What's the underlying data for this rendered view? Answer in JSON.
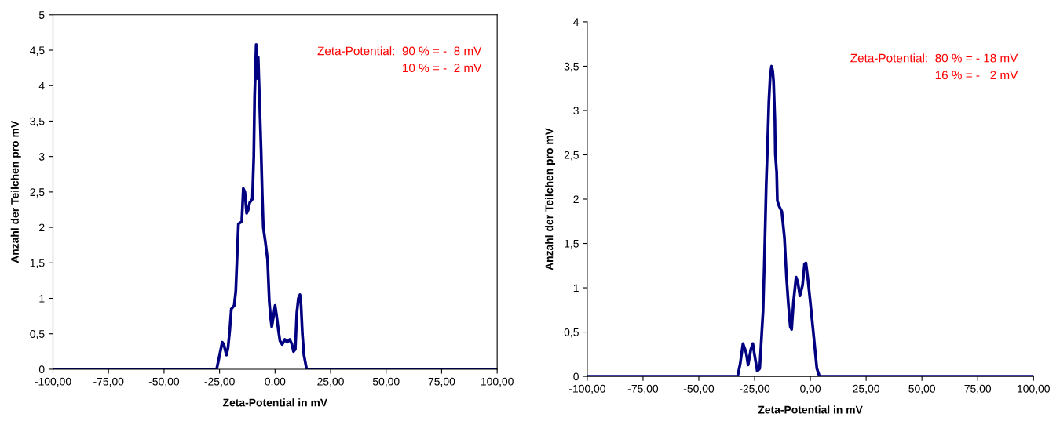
{
  "chart_data": [
    {
      "type": "line",
      "xlabel": "Zeta-Potential in mV",
      "ylabel": "Anzahl der Teilchen pro mV",
      "annotations": [
        "Zeta-Potential:  90 % = -  8 mV",
        "10 % = -  2 mV"
      ],
      "xlim": [
        -100,
        100
      ],
      "xticks": [
        {
          "value": -100,
          "label": "-100,00"
        },
        {
          "value": -75,
          "label": "-75,00"
        },
        {
          "value": -50,
          "label": "-50,00"
        },
        {
          "value": -25,
          "label": "-25,00"
        },
        {
          "value": 0,
          "label": "0,00"
        },
        {
          "value": 25,
          "label": "25,00"
        },
        {
          "value": 50,
          "label": "50,00"
        },
        {
          "value": 75,
          "label": "75,00"
        },
        {
          "value": 100,
          "label": "100,00"
        }
      ],
      "ylim": [
        0,
        5
      ],
      "yticks": [
        0,
        {
          "value": 0.5,
          "label": "0,5"
        },
        1,
        {
          "value": 1.5,
          "label": "1,5"
        },
        2,
        {
          "value": 2.5,
          "label": "2,5"
        },
        3,
        {
          "value": 3.5,
          "label": "3,5"
        },
        4,
        {
          "value": 4.5,
          "label": "4,5"
        },
        5
      ],
      "grid": false,
      "legend": false,
      "marker": "none",
      "line_style": "solid",
      "series": [
        {
          "color": "#000080",
          "x": [
            -100,
            -26.3,
            -25.3,
            -23.8,
            -23.1,
            -21.9,
            -21.2,
            -20.4,
            -19.7,
            -18.4,
            -17.7,
            -17.2,
            -16.5,
            -15.0,
            -14.3,
            -13.6,
            -12.8,
            -12.1,
            -11.4,
            -10.2,
            -9.6,
            -9.2,
            -8.5,
            -8.0,
            -7.6,
            -7.0,
            -6.3,
            -5.8,
            -5.3,
            -4.4,
            -3.4,
            -2.6,
            -1.9,
            -1.5,
            -0.7,
            0,
            0.7,
            1.5,
            2.2,
            3.2,
            4.4,
            5.4,
            6.6,
            7.6,
            8.3,
            9.1,
            9.8,
            10.5,
            11.2,
            11.7,
            12.3,
            13.0,
            14.2,
            100
          ],
          "values": [
            0,
            0,
            0.15,
            0.38,
            0.35,
            0.2,
            0.3,
            0.55,
            0.85,
            0.9,
            1.1,
            1.5,
            2.05,
            2.08,
            2.55,
            2.5,
            2.2,
            2.25,
            2.35,
            2.4,
            3.0,
            3.85,
            4.58,
            4.1,
            4.4,
            3.8,
            3.1,
            2.5,
            2.0,
            1.8,
            1.55,
            0.95,
            0.7,
            0.6,
            0.75,
            0.9,
            0.75,
            0.55,
            0.4,
            0.35,
            0.42,
            0.38,
            0.42,
            0.35,
            0.25,
            0.28,
            0.8,
            1.0,
            1.05,
            0.9,
            0.5,
            0.2,
            0,
            0
          ]
        }
      ]
    },
    {
      "type": "line",
      "xlabel": "Zeta-Potential in mV",
      "ylabel": "Anzahl der Teilchen pro mV",
      "annotations": [
        "Zeta-Potential:  80 % = - 18 mV",
        "16 % = -   2 mV"
      ],
      "xlim": [
        -100,
        100
      ],
      "xticks": [
        {
          "value": -100,
          "label": "-100,00"
        },
        {
          "value": -75,
          "label": "-75,00"
        },
        {
          "value": -50,
          "label": "-50,00"
        },
        {
          "value": -25,
          "label": "-25,00"
        },
        {
          "value": 0,
          "label": "0,00"
        },
        {
          "value": 25,
          "label": "25,00"
        },
        {
          "value": 50,
          "label": "50,00"
        },
        {
          "value": 75,
          "label": "75,00"
        },
        {
          "value": 100,
          "label": "100,00"
        }
      ],
      "ylim": [
        0,
        4
      ],
      "yticks": [
        0,
        {
          "value": 0.5,
          "label": "0,5"
        },
        1,
        {
          "value": 1.5,
          "label": "1,5"
        },
        2,
        {
          "value": 2.5,
          "label": "2,5"
        },
        3,
        {
          "value": 3.5,
          "label": "3,5"
        },
        4
      ],
      "grid": false,
      "legend": false,
      "marker": "none",
      "line_style": "solid",
      "series": [
        {
          "color": "#000080",
          "x": [
            -100,
            -32.6,
            -31.4,
            -30.2,
            -28.8,
            -27.9,
            -26.7,
            -25.8,
            -25.0,
            -23.8,
            -22.7,
            -21.9,
            -21.2,
            -20.7,
            -20.3,
            -19.8,
            -19.2,
            -18.6,
            -18.0,
            -17.4,
            -16.9,
            -16.5,
            -15.9,
            -15.7,
            -15.1,
            -14.8,
            -14.0,
            -12.8,
            -11.6,
            -10.7,
            -9.9,
            -9.0,
            -8.4,
            -7.6,
            -6.4,
            -5.6,
            -4.7,
            -3.5,
            -2.6,
            -2.0,
            -1.2,
            0,
            1.2,
            2.1,
            2.9,
            4.1,
            100
          ],
          "values": [
            0,
            0,
            0.15,
            0.37,
            0.27,
            0.13,
            0.3,
            0.37,
            0.24,
            0.06,
            0.09,
            0.44,
            0.74,
            1.21,
            1.62,
            2.15,
            2.6,
            3.1,
            3.39,
            3.5,
            3.45,
            3.33,
            2.89,
            2.51,
            2.3,
            1.98,
            1.92,
            1.86,
            1.56,
            1.12,
            0.83,
            0.56,
            0.53,
            0.83,
            1.12,
            1.06,
            0.91,
            1.03,
            1.27,
            1.28,
            1.12,
            0.83,
            0.53,
            0.3,
            0.09,
            0,
            0
          ]
        }
      ]
    }
  ]
}
